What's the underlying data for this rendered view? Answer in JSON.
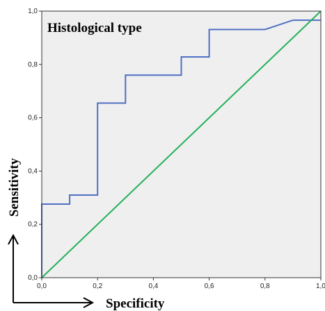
{
  "chart_data": {
    "type": "line",
    "title": "Histological type",
    "xlabel": "Specificity",
    "ylabel": "Sensitivity",
    "xlim": [
      0,
      1
    ],
    "ylim": [
      0,
      1
    ],
    "x_ticks": [
      "0,0",
      "0,2",
      "0,4",
      "0,6",
      "0,8",
      "1,0"
    ],
    "y_ticks": [
      "0,0",
      "0,2",
      "0,4",
      "0,6",
      "0,8",
      "1,0"
    ],
    "grid": false,
    "background": "#efefef",
    "series": [
      {
        "color": "#4f6fc4",
        "x": [
          0,
          0,
          0.1,
          0.1,
          0.2,
          0.2,
          0.3,
          0.3,
          0.5,
          0.5,
          0.6,
          0.6,
          0.8,
          0.9,
          1.0
        ],
        "y": [
          0,
          0.276,
          0.276,
          0.31,
          0.31,
          0.655,
          0.655,
          0.76,
          0.76,
          0.828,
          0.828,
          0.931,
          0.931,
          0.966,
          0.966
        ]
      },
      {
        "color": "#22b05a",
        "x": [
          0,
          1
        ],
        "y": [
          0,
          1
        ]
      }
    ]
  }
}
